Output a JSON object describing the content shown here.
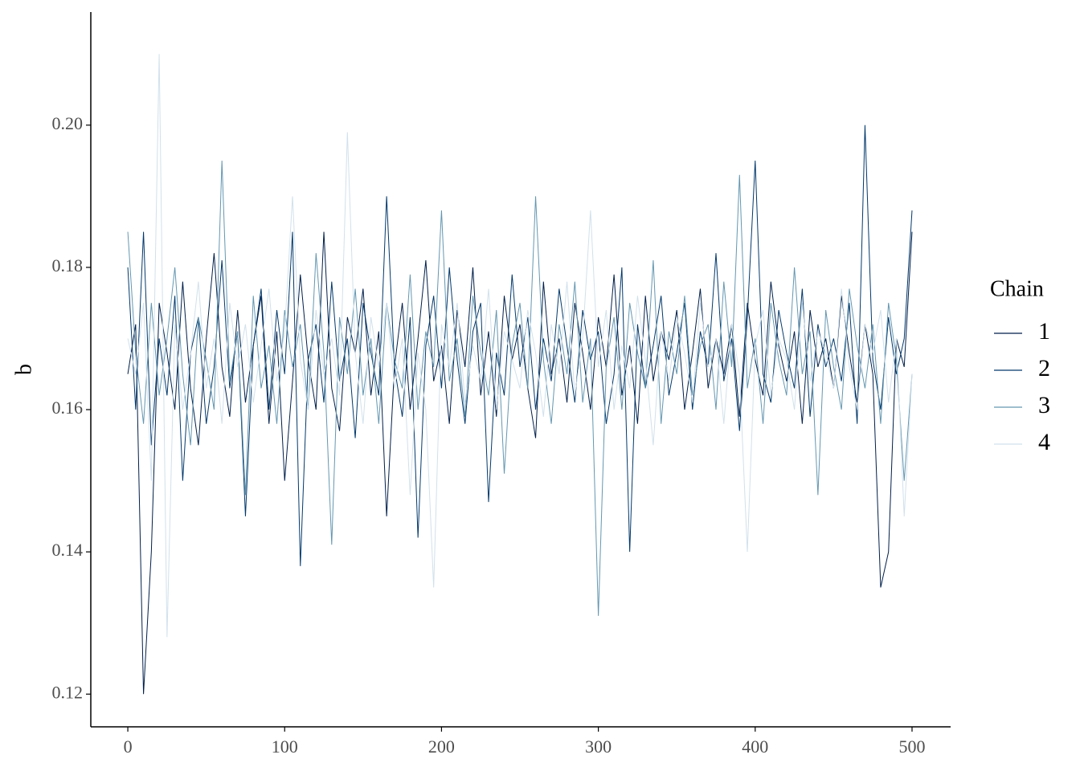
{
  "chart_data": {
    "type": "line",
    "y_label": "b",
    "legend_title": "Chain",
    "legend_position": "right",
    "grid": false,
    "xlim": [
      -23.6,
      524.6
    ],
    "ylim": [
      0.1154,
      0.2159
    ],
    "xticks": [
      0,
      100,
      200,
      300,
      400,
      500
    ],
    "yticks": [
      0.12,
      0.14,
      0.16,
      0.18,
      {
        "value": 0.2,
        "label": "0.20"
      }
    ],
    "x": [
      0,
      5,
      10,
      15,
      20,
      25,
      30,
      35,
      40,
      45,
      50,
      55,
      60,
      65,
      70,
      75,
      80,
      85,
      90,
      95,
      100,
      105,
      110,
      115,
      120,
      125,
      130,
      135,
      140,
      145,
      150,
      155,
      160,
      165,
      170,
      175,
      180,
      185,
      190,
      195,
      200,
      205,
      210,
      215,
      220,
      225,
      230,
      235,
      240,
      245,
      250,
      255,
      260,
      265,
      270,
      275,
      280,
      285,
      290,
      295,
      300,
      305,
      310,
      315,
      320,
      325,
      330,
      335,
      340,
      345,
      350,
      355,
      360,
      365,
      370,
      375,
      380,
      385,
      390,
      395,
      400,
      405,
      410,
      415,
      420,
      425,
      430,
      435,
      440,
      445,
      450,
      455,
      460,
      465,
      470,
      475,
      480,
      485,
      490,
      495,
      500
    ],
    "series": [
      {
        "name": "1",
        "color": "#011f4b",
        "values": [
          0.165,
          0.172,
          0.12,
          0.14,
          0.175,
          0.168,
          0.16,
          0.178,
          0.163,
          0.155,
          0.17,
          0.182,
          0.166,
          0.159,
          0.174,
          0.161,
          0.169,
          0.176,
          0.158,
          0.171,
          0.15,
          0.164,
          0.179,
          0.167,
          0.16,
          0.185,
          0.163,
          0.157,
          0.173,
          0.168,
          0.177,
          0.162,
          0.171,
          0.145,
          0.166,
          0.175,
          0.16,
          0.17,
          0.181,
          0.164,
          0.169,
          0.158,
          0.174,
          0.166,
          0.18,
          0.162,
          0.171,
          0.159,
          0.176,
          0.167,
          0.172,
          0.163,
          0.156,
          0.178,
          0.165,
          0.17,
          0.161,
          0.175,
          0.168,
          0.16,
          0.173,
          0.166,
          0.179,
          0.162,
          0.169,
          0.158,
          0.176,
          0.164,
          0.171,
          0.167,
          0.174,
          0.16,
          0.168,
          0.177,
          0.163,
          0.17,
          0.165,
          0.172,
          0.159,
          0.175,
          0.167,
          0.162,
          0.178,
          0.169,
          0.164,
          0.171,
          0.158,
          0.174,
          0.166,
          0.17,
          0.163,
          0.176,
          0.168,
          0.161,
          0.172,
          0.165,
          0.135,
          0.14,
          0.17,
          0.166,
          0.185
        ]
      },
      {
        "name": "2",
        "color": "#03396c",
        "values": [
          0.18,
          0.16,
          0.185,
          0.155,
          0.17,
          0.162,
          0.176,
          0.15,
          0.168,
          0.173,
          0.158,
          0.166,
          0.181,
          0.163,
          0.171,
          0.145,
          0.169,
          0.177,
          0.16,
          0.174,
          0.165,
          0.185,
          0.138,
          0.167,
          0.172,
          0.161,
          0.178,
          0.164,
          0.17,
          0.156,
          0.175,
          0.168,
          0.162,
          0.19,
          0.166,
          0.159,
          0.173,
          0.142,
          0.169,
          0.176,
          0.163,
          0.18,
          0.167,
          0.158,
          0.171,
          0.175,
          0.147,
          0.168,
          0.162,
          0.179,
          0.166,
          0.173,
          0.16,
          0.17,
          0.164,
          0.177,
          0.169,
          0.161,
          0.174,
          0.167,
          0.171,
          0.158,
          0.165,
          0.18,
          0.14,
          0.172,
          0.163,
          0.169,
          0.176,
          0.162,
          0.168,
          0.175,
          0.16,
          0.171,
          0.166,
          0.182,
          0.164,
          0.17,
          0.157,
          0.173,
          0.195,
          0.165,
          0.161,
          0.174,
          0.168,
          0.163,
          0.177,
          0.159,
          0.172,
          0.166,
          0.17,
          0.164,
          0.175,
          0.158,
          0.2,
          0.167,
          0.16,
          0.173,
          0.165,
          0.17,
          0.188
        ]
      },
      {
        "name": "3",
        "color": "#6497b1",
        "values": [
          0.185,
          0.168,
          0.158,
          0.175,
          0.162,
          0.17,
          0.18,
          0.165,
          0.155,
          0.173,
          0.167,
          0.16,
          0.195,
          0.164,
          0.171,
          0.148,
          0.176,
          0.163,
          0.169,
          0.158,
          0.174,
          0.166,
          0.172,
          0.16,
          0.182,
          0.168,
          0.141,
          0.173,
          0.165,
          0.177,
          0.162,
          0.17,
          0.158,
          0.175,
          0.167,
          0.163,
          0.179,
          0.16,
          0.171,
          0.166,
          0.188,
          0.164,
          0.17,
          0.159,
          0.176,
          0.168,
          0.162,
          0.174,
          0.151,
          0.169,
          0.175,
          0.163,
          0.19,
          0.167,
          0.158,
          0.172,
          0.165,
          0.178,
          0.161,
          0.17,
          0.131,
          0.166,
          0.173,
          0.16,
          0.175,
          0.168,
          0.163,
          0.181,
          0.158,
          0.171,
          0.165,
          0.176,
          0.162,
          0.169,
          0.172,
          0.16,
          0.178,
          0.166,
          0.193,
          0.163,
          0.17,
          0.158,
          0.175,
          0.167,
          0.162,
          0.18,
          0.165,
          0.171,
          0.148,
          0.174,
          0.166,
          0.16,
          0.177,
          0.169,
          0.163,
          0.172,
          0.158,
          0.175,
          0.167,
          0.15,
          0.165
        ]
      },
      {
        "name": "4",
        "color": "#d1e1ec",
        "values": [
          0.17,
          0.165,
          0.175,
          0.15,
          0.21,
          0.128,
          0.172,
          0.16,
          0.168,
          0.178,
          0.163,
          0.17,
          0.158,
          0.175,
          0.166,
          0.172,
          0.161,
          0.169,
          0.177,
          0.164,
          0.171,
          0.19,
          0.167,
          0.16,
          0.174,
          0.165,
          0.17,
          0.162,
          0.199,
          0.168,
          0.158,
          0.173,
          0.166,
          0.175,
          0.163,
          0.17,
          0.148,
          0.168,
          0.16,
          0.135,
          0.172,
          0.166,
          0.175,
          0.161,
          0.169,
          0.164,
          0.177,
          0.16,
          0.171,
          0.167,
          0.163,
          0.174,
          0.168,
          0.159,
          0.172,
          0.165,
          0.178,
          0.162,
          0.17,
          0.188,
          0.166,
          0.174,
          0.16,
          0.169,
          0.163,
          0.176,
          0.167,
          0.155,
          0.171,
          0.164,
          0.173,
          0.168,
          0.161,
          0.175,
          0.166,
          0.17,
          0.158,
          0.172,
          0.165,
          0.14,
          0.169,
          0.174,
          0.162,
          0.17,
          0.167,
          0.16,
          0.175,
          0.164,
          0.171,
          0.168,
          0.163,
          0.177,
          0.166,
          0.16,
          0.172,
          0.168,
          0.174,
          0.161,
          0.17,
          0.145,
          0.165
        ]
      }
    ]
  }
}
